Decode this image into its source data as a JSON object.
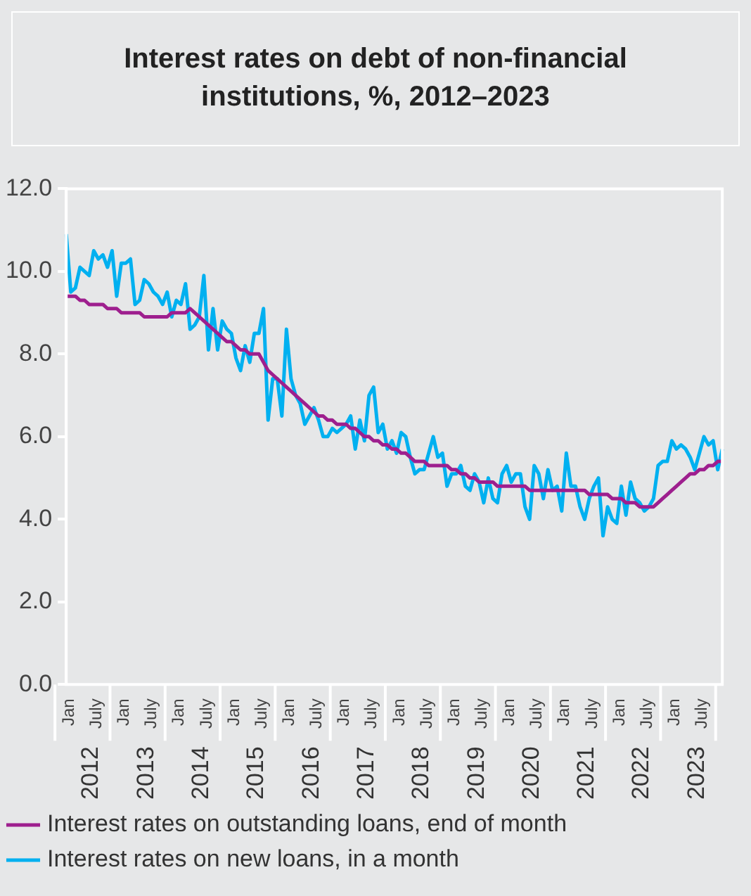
{
  "chart_data": {
    "type": "line",
    "title": "Interest rates on debt of non-financial institutions, %, 2012–2023",
    "categories": [
      "Jan",
      null,
      null,
      null,
      null,
      null,
      "July",
      null,
      null,
      null,
      null,
      null,
      "Jan",
      null,
      null,
      null,
      null,
      null,
      "July",
      null,
      null,
      null,
      null,
      null,
      "Jan",
      null,
      null,
      null,
      null,
      null,
      "July",
      null,
      null,
      null,
      null,
      null,
      "Jan",
      null,
      null,
      null,
      null,
      null,
      "July",
      null,
      null,
      null,
      null,
      null,
      "Jan",
      null,
      null,
      null,
      null,
      null,
      "July",
      null,
      null,
      null,
      null,
      null,
      "Jan",
      null,
      null,
      null,
      null,
      null,
      "July",
      null,
      null,
      null,
      null,
      null,
      "Jan",
      null,
      null,
      null,
      null,
      null,
      "July",
      null,
      null,
      null,
      null,
      null,
      "Jan",
      null,
      null,
      null,
      null,
      null,
      "July",
      null,
      null,
      null,
      null,
      null,
      "Jan",
      null,
      null,
      null,
      null,
      null,
      "July",
      null,
      null,
      null,
      null,
      null,
      "Jan",
      null,
      null,
      null,
      null,
      null,
      "July",
      null,
      null,
      null,
      null,
      null,
      "Jan",
      null,
      null,
      null,
      null,
      null,
      "July",
      null,
      null,
      null,
      null,
      null,
      "Jan",
      null,
      null,
      null,
      null,
      null,
      "July",
      null,
      null,
      null,
      null,
      null
    ],
    "series": [
      {
        "name": "Interest rates on outstanding loans, end of month",
        "color": "#9e1f8e",
        "values": [
          9.4,
          9.4,
          9.4,
          9.3,
          9.3,
          9.2,
          9.2,
          9.2,
          9.2,
          9.1,
          9.1,
          9.1,
          9.0,
          9.0,
          9.0,
          9.0,
          9.0,
          8.9,
          8.9,
          8.9,
          8.9,
          8.9,
          8.9,
          9.0,
          9.0,
          9.0,
          9.0,
          9.1,
          9.0,
          8.9,
          8.8,
          8.7,
          8.6,
          8.5,
          8.4,
          8.3,
          8.3,
          8.2,
          8.1,
          8.1,
          8.0,
          8.0,
          8.0,
          7.8,
          7.6,
          7.5,
          7.4,
          7.3,
          7.2,
          7.1,
          7.0,
          6.9,
          6.8,
          6.7,
          6.6,
          6.5,
          6.5,
          6.4,
          6.4,
          6.3,
          6.3,
          6.3,
          6.2,
          6.2,
          6.1,
          6.0,
          6.0,
          5.9,
          5.9,
          5.8,
          5.8,
          5.7,
          5.7,
          5.6,
          5.6,
          5.5,
          5.4,
          5.4,
          5.4,
          5.3,
          5.3,
          5.3,
          5.3,
          5.3,
          5.2,
          5.2,
          5.1,
          5.1,
          5.0,
          5.0,
          4.9,
          4.9,
          4.9,
          4.9,
          4.8,
          4.8,
          4.8,
          4.8,
          4.8,
          4.8,
          4.8,
          4.7,
          4.7,
          4.7,
          4.7,
          4.7,
          4.7,
          4.7,
          4.7,
          4.7,
          4.7,
          4.7,
          4.7,
          4.7,
          4.6,
          4.6,
          4.6,
          4.6,
          4.6,
          4.5,
          4.5,
          4.5,
          4.4,
          4.4,
          4.4,
          4.3,
          4.3,
          4.3,
          4.3,
          4.4,
          4.5,
          4.6,
          4.7,
          4.8,
          4.9,
          5.0,
          5.1,
          5.1,
          5.2,
          5.2,
          5.3,
          5.3,
          5.4,
          5.4
        ]
      },
      {
        "name": "Interest rates on new loans, in a month",
        "color": "#00b0f0",
        "values": [
          10.9,
          9.5,
          9.6,
          10.1,
          10.0,
          9.9,
          10.5,
          10.3,
          10.4,
          10.1,
          10.5,
          9.4,
          10.2,
          10.2,
          10.3,
          9.2,
          9.3,
          9.8,
          9.7,
          9.5,
          9.4,
          9.2,
          9.5,
          8.9,
          9.3,
          9.2,
          9.7,
          8.6,
          8.7,
          8.9,
          9.9,
          8.1,
          9.1,
          8.1,
          8.8,
          8.6,
          8.5,
          7.9,
          7.6,
          8.2,
          7.8,
          8.5,
          8.5,
          9.1,
          6.4,
          7.4,
          7.4,
          6.5,
          8.6,
          7.4,
          7.0,
          6.8,
          6.3,
          6.5,
          6.7,
          6.4,
          6.0,
          6.0,
          6.2,
          6.1,
          6.2,
          6.3,
          6.5,
          5.7,
          6.4,
          5.9,
          7.0,
          7.2,
          6.1,
          6.3,
          5.7,
          5.9,
          5.6,
          6.1,
          6.0,
          5.5,
          5.1,
          5.2,
          5.2,
          5.6,
          6.0,
          5.5,
          5.6,
          4.8,
          5.1,
          5.1,
          5.3,
          4.8,
          4.7,
          5.1,
          4.9,
          4.4,
          5.0,
          4.5,
          4.4,
          5.1,
          5.3,
          4.9,
          5.1,
          5.1,
          4.3,
          4.0,
          5.3,
          5.1,
          4.5,
          5.2,
          4.7,
          4.8,
          4.2,
          5.6,
          4.8,
          4.8,
          4.3,
          4.0,
          4.5,
          4.8,
          5.0,
          3.6,
          4.3,
          4.0,
          3.9,
          4.8,
          4.1,
          4.9,
          4.5,
          4.4,
          4.2,
          4.3,
          4.5,
          5.3,
          5.4,
          5.4,
          5.9,
          5.7,
          5.8,
          5.7,
          5.5,
          5.2,
          5.6,
          6.0,
          5.8,
          5.9,
          5.2,
          5.7
        ]
      }
    ],
    "annotations": [
      "2012",
      "2013",
      "2014",
      "2015",
      "2016",
      "2017",
      "2018",
      "2019",
      "2020",
      "2021",
      "2022",
      "2023"
    ],
    "ylim": [
      0,
      12
    ],
    "yticks": [
      {
        "value": 0,
        "label": "0.0"
      },
      {
        "value": 2,
        "label": "2.0"
      },
      {
        "value": 4,
        "label": "4.0"
      },
      {
        "value": 6,
        "label": "6.0"
      },
      {
        "value": 8,
        "label": "8.0"
      },
      {
        "value": 10,
        "label": "10.0"
      },
      {
        "value": 12,
        "label": "12.0"
      }
    ],
    "legend": "bottom",
    "marker": "none",
    "line_style": "solid"
  }
}
